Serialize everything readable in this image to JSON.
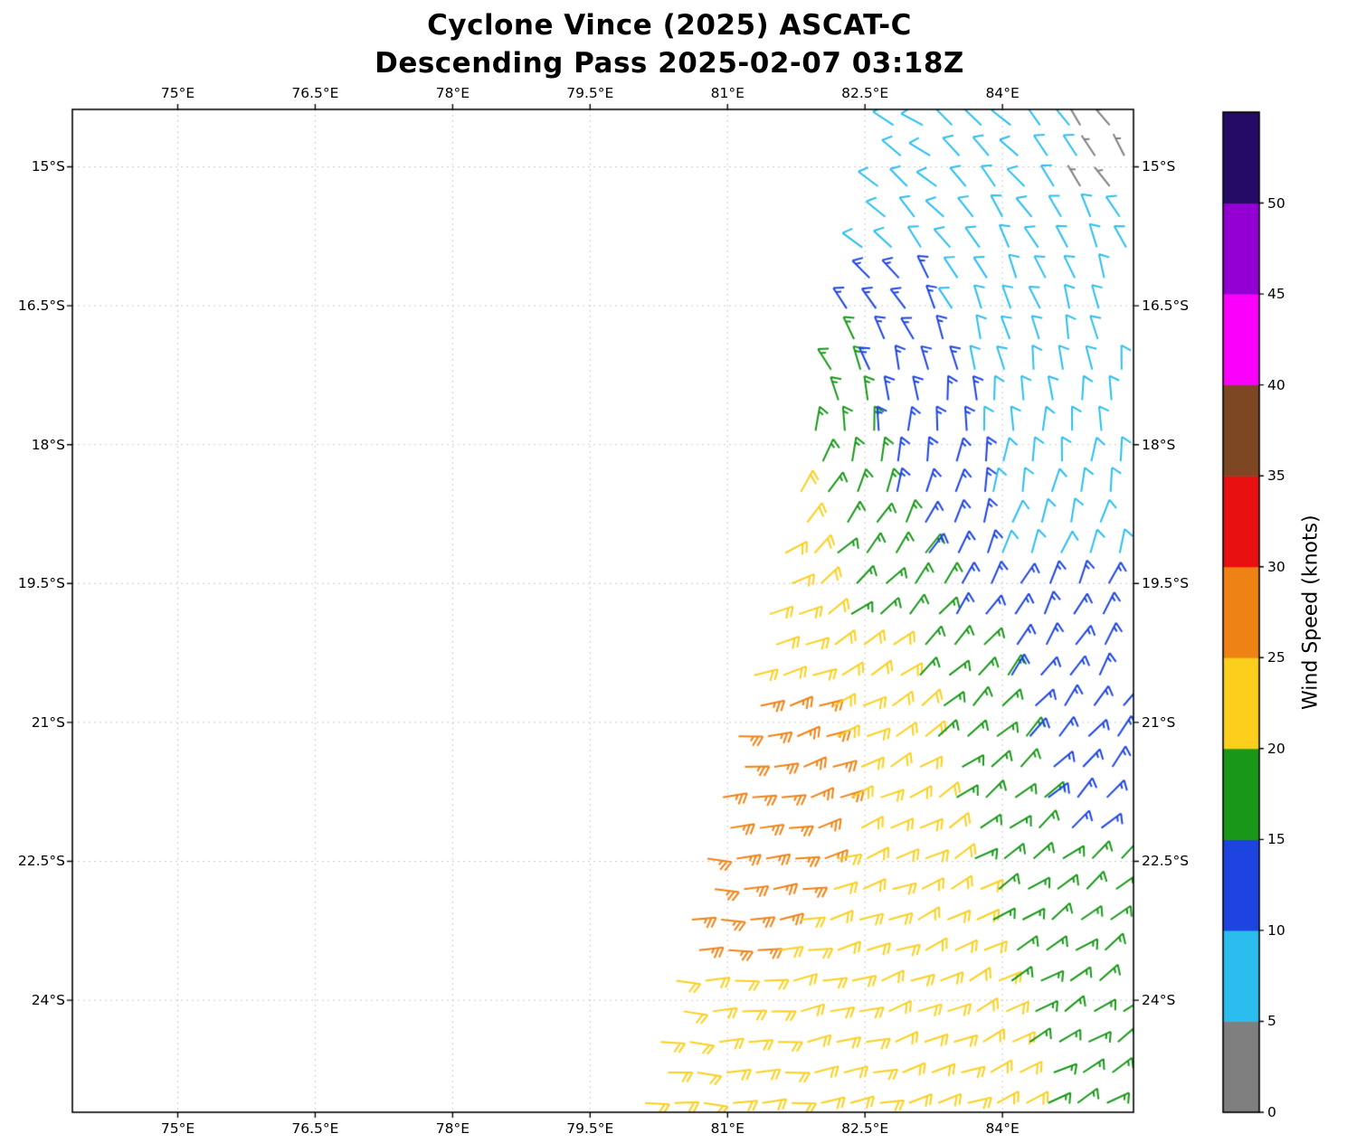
{
  "title": {
    "line1": "Cyclone Vince (2025) ASCAT-C",
    "line2": "Descending Pass 2025-02-07 03:18Z"
  },
  "chart_data": {
    "type": "wind_barb_map",
    "satellite": "ASCAT-C",
    "pass_type": "Descending",
    "pass_time": "2025-02-07 03:18Z",
    "units": "knots",
    "axes": {
      "x": {
        "range": [
          73.85,
          85.43
        ],
        "ticks": [
          {
            "label": "75°E",
            "value": 75
          },
          {
            "label": "76.5°E",
            "value": 76.5
          },
          {
            "label": "78°E",
            "value": 78
          },
          {
            "label": "79.5°E",
            "value": 79.5
          },
          {
            "label": "81°E",
            "value": 81
          },
          {
            "label": "82.5°E",
            "value": 82.5
          },
          {
            "label": "84°E",
            "value": 84
          }
        ]
      },
      "y": {
        "range": [
          -25.21,
          -14.38
        ],
        "ticks": [
          {
            "label": "15°S",
            "value": -15
          },
          {
            "label": "16.5°S",
            "value": -16.5
          },
          {
            "label": "18°S",
            "value": -18
          },
          {
            "label": "19.5°S",
            "value": -19.5
          },
          {
            "label": "21°S",
            "value": -21
          },
          {
            "label": "22.5°S",
            "value": -22.5
          },
          {
            "label": "24°S",
            "value": -24
          }
        ]
      },
      "grid": true
    },
    "colorbar": {
      "label": "Wind Speed (knots)",
      "tick_values": [
        0,
        5,
        10,
        15,
        20,
        25,
        30,
        35,
        40,
        45,
        50
      ],
      "bands": [
        {
          "min": 0,
          "max": 5,
          "color": "#7f7f7f"
        },
        {
          "min": 5,
          "max": 10,
          "color": "#2bbdee"
        },
        {
          "min": 10,
          "max": 15,
          "color": "#1d44e0"
        },
        {
          "min": 15,
          "max": 20,
          "color": "#189718"
        },
        {
          "min": 20,
          "max": 25,
          "color": "#fccf1c"
        },
        {
          "min": 25,
          "max": 30,
          "color": "#ef8214"
        },
        {
          "min": 30,
          "max": 35,
          "color": "#e81010"
        },
        {
          "min": 35,
          "max": 40,
          "color": "#7e4724"
        },
        {
          "min": 40,
          "max": 45,
          "color": "#fb00fb"
        },
        {
          "min": 45,
          "max": 50,
          "color": "#9400d3"
        },
        {
          "min": 50,
          "max": 55,
          "color": "#250a66"
        }
      ]
    },
    "wind_barbs": {
      "lon_step_deg": 0.32,
      "flow_model": {
        "center_lon": 80.8,
        "center_lat": -17.8,
        "rotation": "clockwise"
      },
      "rows": [
        {
          "lat": -14.55,
          "segments": [
            [
              82.81,
              84.85,
              8
            ],
            [
              84.85,
              85.35,
              3
            ]
          ]
        },
        {
          "lat": -14.88,
          "segments": [
            [
              82.73,
              84.85,
              8
            ],
            [
              84.85,
              85.35,
              3
            ]
          ]
        },
        {
          "lat": -15.21,
          "segments": [
            [
              82.64,
              84.85,
              8
            ],
            [
              84.85,
              85.35,
              3
            ]
          ]
        },
        {
          "lat": -15.54,
          "segments": [
            [
              82.56,
              85.35,
              8
            ]
          ]
        },
        {
          "lat": -15.87,
          "segments": [
            [
              82.47,
              85.35,
              8
            ]
          ]
        },
        {
          "lat": -16.2,
          "segments": [
            [
              82.39,
              83.35,
              13
            ],
            [
              83.35,
              85.35,
              8
            ]
          ]
        },
        {
          "lat": -16.53,
          "segments": [
            [
              82.3,
              83.45,
              13
            ],
            [
              83.45,
              85.35,
              8
            ]
          ]
        },
        {
          "lat": -16.86,
          "segments": [
            [
              82.22,
              82.55,
              17
            ],
            [
              82.55,
              83.6,
              13
            ],
            [
              83.6,
              85.35,
              8
            ]
          ]
        },
        {
          "lat": -17.19,
          "segments": [
            [
              82.13,
              82.55,
              17
            ],
            [
              82.55,
              83.7,
              13
            ],
            [
              83.7,
              85.35,
              8
            ]
          ]
        },
        {
          "lat": -17.52,
          "segments": [
            [
              82.05,
              82.6,
              17
            ],
            [
              82.6,
              83.75,
              13
            ],
            [
              83.75,
              85.35,
              8
            ]
          ]
        },
        {
          "lat": -17.85,
          "segments": [
            [
              81.96,
              82.65,
              17
            ],
            [
              82.65,
              83.8,
              13
            ],
            [
              83.8,
              85.35,
              8
            ]
          ]
        },
        {
          "lat": -18.18,
          "segments": [
            [
              81.88,
              82.7,
              17
            ],
            [
              82.7,
              83.85,
              13
            ],
            [
              83.85,
              85.35,
              8
            ]
          ]
        },
        {
          "lat": -18.51,
          "segments": [
            [
              81.8,
              82.1,
              22
            ],
            [
              82.1,
              82.85,
              17
            ],
            [
              82.85,
              83.9,
              13
            ],
            [
              83.9,
              85.35,
              8
            ]
          ]
        },
        {
          "lat": -18.84,
          "segments": [
            [
              81.71,
              82.15,
              22
            ],
            [
              82.15,
              83.0,
              17
            ],
            [
              83.0,
              83.95,
              13
            ],
            [
              83.95,
              85.35,
              8
            ]
          ]
        },
        {
          "lat": -19.17,
          "segments": [
            [
              81.63,
              82.2,
              22
            ],
            [
              82.2,
              83.2,
              17
            ],
            [
              83.2,
              84.0,
              13
            ],
            [
              84.0,
              85.35,
              8
            ]
          ]
        },
        {
          "lat": -19.5,
          "segments": [
            [
              81.54,
              82.25,
              22
            ],
            [
              82.25,
              83.4,
              17
            ],
            [
              83.4,
              85.35,
              13
            ]
          ]
        },
        {
          "lat": -19.83,
          "segments": [
            [
              81.46,
              82.35,
              22
            ],
            [
              82.35,
              83.5,
              17
            ],
            [
              83.5,
              85.35,
              13
            ]
          ]
        },
        {
          "lat": -20.16,
          "segments": [
            [
              81.37,
              83.0,
              22
            ],
            [
              83.0,
              84.0,
              17
            ],
            [
              84.0,
              85.35,
              13
            ]
          ]
        },
        {
          "lat": -20.49,
          "segments": [
            [
              81.29,
              83.1,
              22
            ],
            [
              83.1,
              84.1,
              17
            ],
            [
              84.1,
              85.35,
              13
            ]
          ]
        },
        {
          "lat": -20.82,
          "segments": [
            [
              81.2,
              82.0,
              27
            ],
            [
              82.0,
              83.2,
              22
            ],
            [
              83.2,
              84.2,
              17
            ],
            [
              84.2,
              85.35,
              13
            ]
          ]
        },
        {
          "lat": -21.15,
          "segments": [
            [
              81.12,
              82.2,
              27
            ],
            [
              82.2,
              83.3,
              22
            ],
            [
              83.3,
              84.3,
              17
            ],
            [
              84.3,
              85.35,
              13
            ]
          ]
        },
        {
          "lat": -21.48,
          "segments": [
            [
              81.03,
              82.3,
              27
            ],
            [
              82.3,
              83.4,
              22
            ],
            [
              83.4,
              84.4,
              17
            ],
            [
              84.4,
              85.35,
              13
            ]
          ]
        },
        {
          "lat": -21.81,
          "segments": [
            [
              80.95,
              82.35,
              27
            ],
            [
              82.35,
              83.5,
              22
            ],
            [
              83.5,
              84.5,
              17
            ],
            [
              84.5,
              85.35,
              13
            ]
          ]
        },
        {
          "lat": -22.14,
          "segments": [
            [
              80.87,
              82.3,
              27
            ],
            [
              82.3,
              83.6,
              22
            ],
            [
              83.6,
              84.6,
              17
            ],
            [
              84.6,
              85.35,
              13
            ]
          ]
        },
        {
          "lat": -22.47,
          "segments": [
            [
              80.78,
              82.2,
              27
            ],
            [
              82.2,
              83.7,
              22
            ],
            [
              83.7,
              85.35,
              17
            ]
          ]
        },
        {
          "lat": -22.8,
          "segments": [
            [
              80.7,
              82.0,
              27
            ],
            [
              82.0,
              83.8,
              22
            ],
            [
              83.8,
              85.35,
              17
            ]
          ]
        },
        {
          "lat": -23.13,
          "segments": [
            [
              80.61,
              81.8,
              27
            ],
            [
              81.8,
              83.9,
              22
            ],
            [
              83.9,
              85.35,
              17
            ]
          ]
        },
        {
          "lat": -23.46,
          "segments": [
            [
              80.53,
              81.4,
              27
            ],
            [
              81.4,
              84.0,
              22
            ],
            [
              84.0,
              85.35,
              17
            ]
          ]
        },
        {
          "lat": -23.79,
          "segments": [
            [
              80.44,
              84.1,
              22
            ],
            [
              84.1,
              85.35,
              17
            ]
          ]
        },
        {
          "lat": -24.12,
          "segments": [
            [
              80.36,
              84.2,
              22
            ],
            [
              84.2,
              85.35,
              17
            ]
          ]
        },
        {
          "lat": -24.45,
          "segments": [
            [
              80.27,
              84.3,
              22
            ],
            [
              84.3,
              85.35,
              17
            ]
          ]
        },
        {
          "lat": -24.78,
          "segments": [
            [
              80.19,
              84.4,
              22
            ],
            [
              84.4,
              85.35,
              17
            ]
          ]
        },
        {
          "lat": -25.11,
          "segments": [
            [
              80.1,
              84.5,
              22
            ],
            [
              84.5,
              85.35,
              17
            ]
          ]
        }
      ]
    }
  }
}
